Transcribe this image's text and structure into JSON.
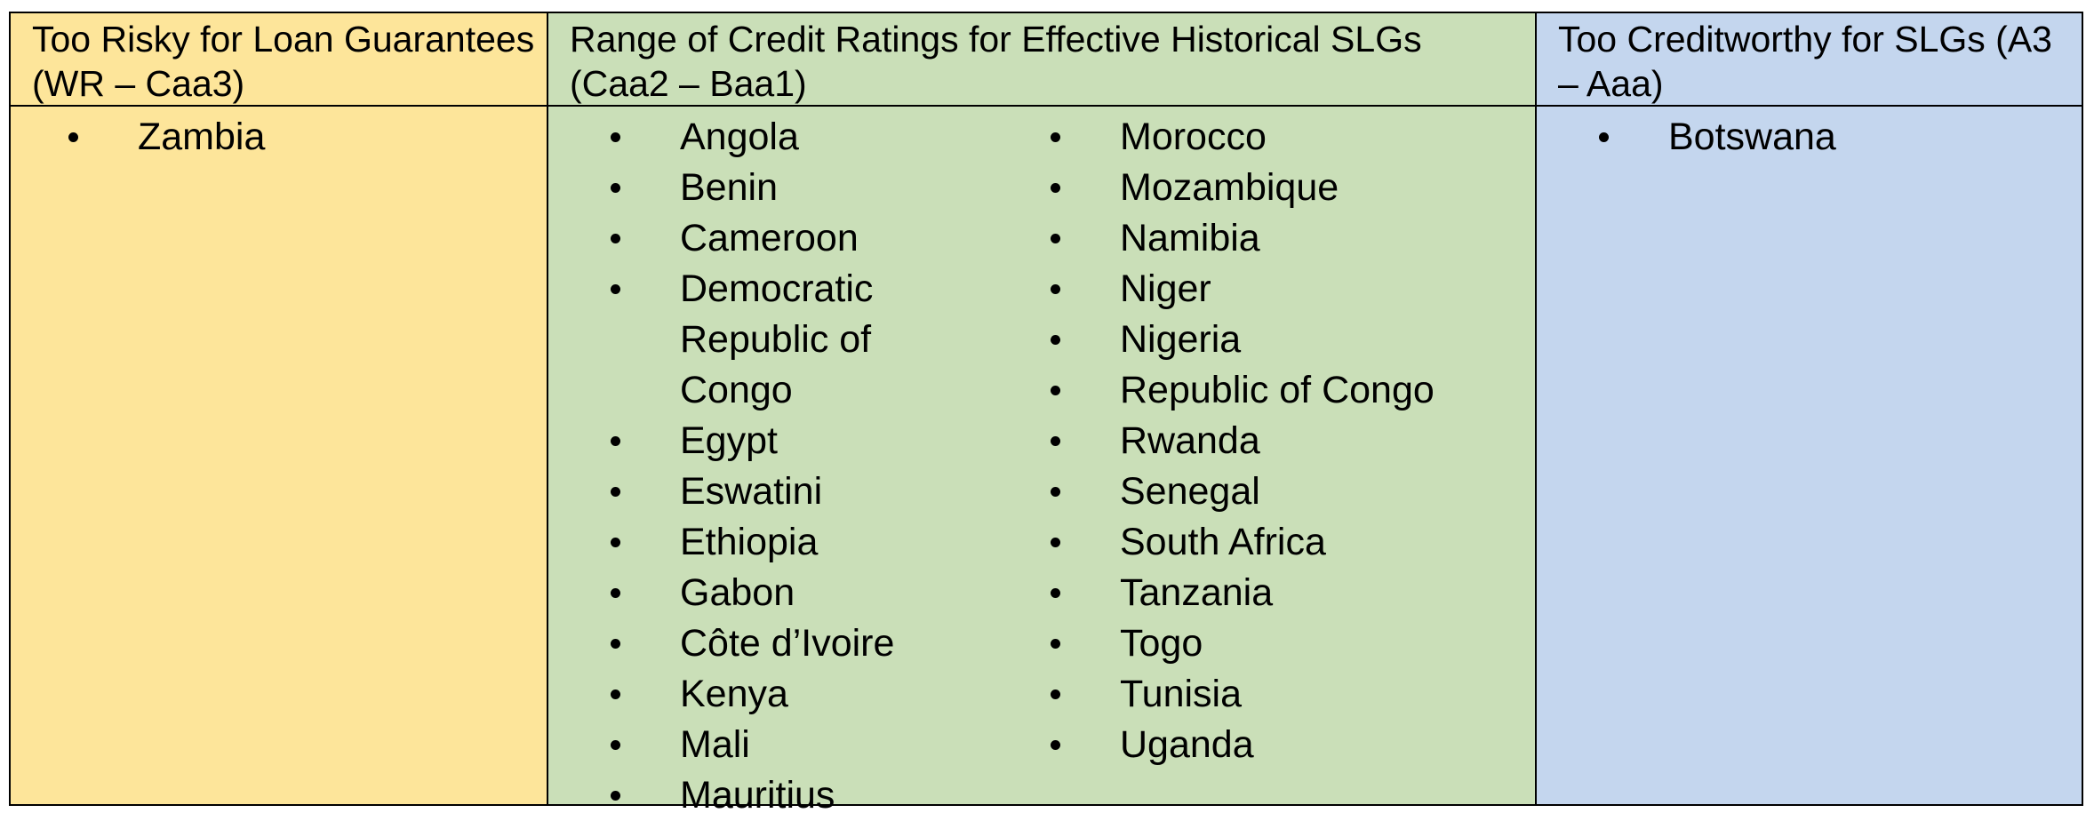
{
  "table": {
    "columns": [
      {
        "header": "Too Risky for Loan Guarantees (WR – Caa3)",
        "lists": [
          [
            "Zambia"
          ]
        ]
      },
      {
        "header": "Range of Credit Ratings for Effective Historical SLGs (Caa2 – Baa1)",
        "lists": [
          [
            "Angola",
            "Benin",
            "Cameroon",
            "Democratic Republic of Congo",
            "Egypt",
            "Eswatini",
            "Ethiopia",
            "Gabon",
            "Côte d’Ivoire",
            "Kenya",
            "Mali",
            "Mauritius"
          ],
          [
            "Morocco",
            "Mozambique",
            "Namibia",
            "Niger",
            "Nigeria",
            "Republic of Congo",
            "Rwanda",
            "Senegal",
            "South Africa",
            "Tanzania",
            "Togo",
            "Tunisia",
            "Uganda"
          ]
        ]
      },
      {
        "header": "Too Creditworthy for SLGs (A3 – Aaa)",
        "lists": [
          [
            "Botswana"
          ]
        ]
      }
    ]
  }
}
